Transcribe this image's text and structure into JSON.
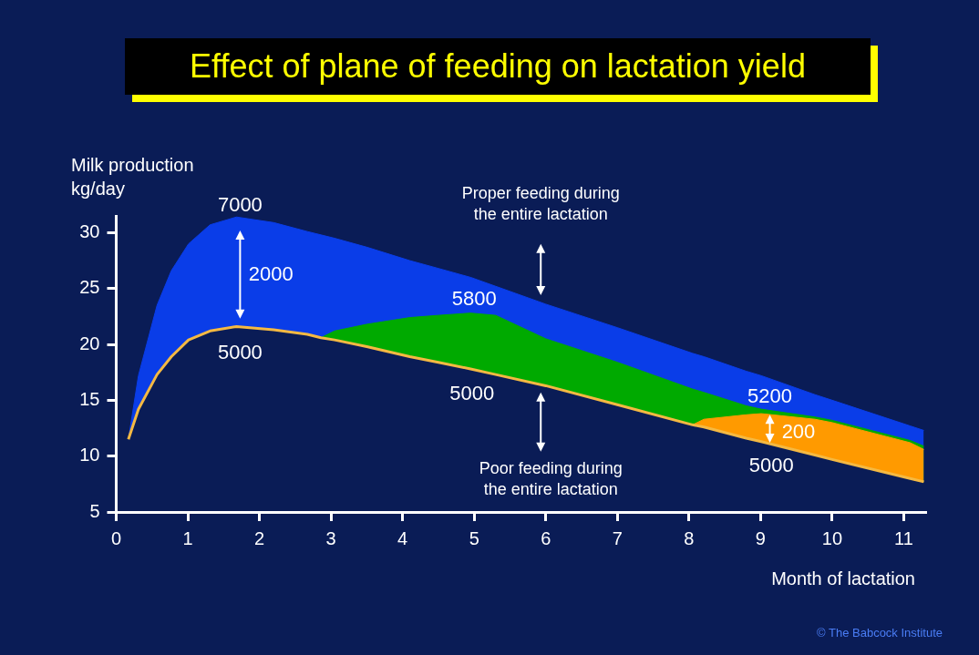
{
  "chart_data": {
    "type": "area",
    "title": "Effect of plane of feeding on lactation yield",
    "xlabel": "Month of lactation",
    "ylabel": "Milk production\nkg/day",
    "xlim": [
      0,
      11.3
    ],
    "xticks": [
      0,
      1,
      2,
      3,
      4,
      5,
      6,
      7,
      8,
      9,
      10,
      11
    ],
    "ylim": [
      5,
      31.5
    ],
    "yticks": [
      5,
      10,
      15,
      20,
      25,
      30
    ],
    "series": [
      {
        "type": "area",
        "color": "#0a3de8",
        "x": [
          0.17,
          0.31,
          0.57,
          0.77,
          1.01,
          1.31,
          1.68,
          2.2,
          2.67,
          2.86,
          3.05,
          3.5,
          4.1,
          4.5,
          4.95,
          5.3,
          6,
          7,
          8.05,
          8.21,
          8.8,
          9.01,
          9.76,
          10,
          11.09,
          11.28
        ],
        "values": [
          11.5,
          17.2,
          23.5,
          26.6,
          29.0,
          30.7,
          31.4,
          30.9,
          30.1,
          29.8,
          29.5,
          28.7,
          27.5,
          26.8,
          26.0,
          25.2,
          23.6,
          21.5,
          19.2,
          18.9,
          17.6,
          17.2,
          15.5,
          15.0,
          12.7,
          12.3
        ]
      },
      {
        "type": "area",
        "color": "#00aa00",
        "x": [
          2.86,
          3.05,
          3.5,
          4.1,
          4.5,
          4.95,
          5.3,
          6,
          7,
          8.05,
          8.21,
          8.8,
          9.01,
          9.76,
          10,
          11.09,
          11.28
        ],
        "values": [
          20.6,
          21.2,
          21.8,
          22.4,
          22.6,
          22.8,
          22.6,
          20.5,
          18.4,
          16.0,
          15.7,
          14.5,
          14.2,
          13.5,
          13.2,
          11.4,
          10.9
        ]
      },
      {
        "type": "area",
        "color": "#ff9a00",
        "x": [
          8.05,
          8.21,
          8.8,
          9.01,
          9.76,
          10,
          11.09,
          11.28
        ],
        "values": [
          12.8,
          13.3,
          13.7,
          13.8,
          13.3,
          13.0,
          11.2,
          10.6
        ]
      },
      {
        "type": "line",
        "color": "#f5b942",
        "x": [
          0.17,
          0.31,
          0.57,
          0.77,
          1.01,
          1.31,
          1.68,
          2.2,
          2.67,
          2.86,
          3.05,
          3.5,
          4.1,
          4.5,
          4.95,
          5.3,
          6,
          7,
          8.05,
          8.21,
          8.8,
          9.01,
          9.76,
          10,
          11.09,
          11.28
        ],
        "values": [
          11.5,
          14.2,
          17.3,
          18.9,
          20.4,
          21.2,
          21.6,
          21.3,
          20.9,
          20.6,
          20.4,
          19.8,
          18.9,
          18.4,
          17.8,
          17.3,
          16.3,
          14.6,
          12.8,
          12.6,
          11.6,
          11.3,
          10.1,
          9.7,
          8.0,
          7.7
        ]
      }
    ],
    "annotations": [
      "7000",
      "2000",
      "5000",
      "5800",
      "5000",
      "5200",
      "200",
      "5000",
      "Proper feeding during\nthe entire lactation",
      "Poor feeding during\nthe entire lactation",
      "© The Babcock Institute"
    ]
  }
}
